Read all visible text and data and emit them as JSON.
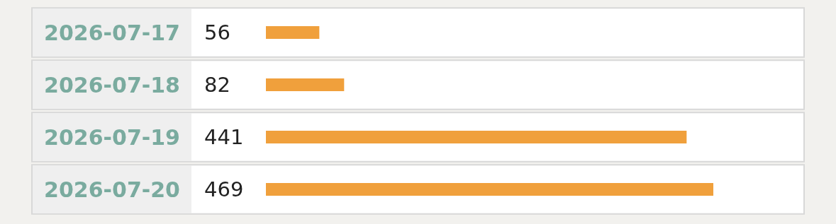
{
  "chart_data": {
    "type": "bar",
    "orientation": "horizontal",
    "categories": [
      "2026-07-17",
      "2026-07-18",
      "2026-07-19",
      "2026-07-20"
    ],
    "values": [
      56,
      82,
      441,
      469
    ],
    "color": "#f0a03c",
    "data_labels": true,
    "legend": false,
    "tick_labels": "y"
  }
}
